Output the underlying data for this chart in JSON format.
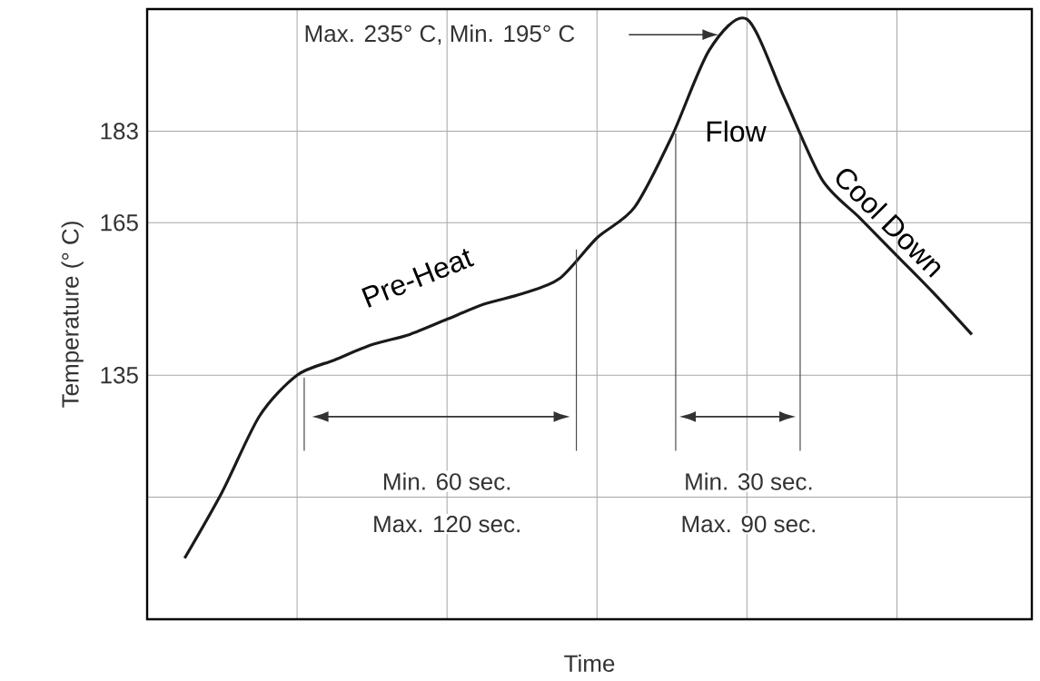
{
  "chart_data": {
    "type": "line",
    "xlabel": "Time",
    "ylabel": "Temperature (° C)",
    "categories": [
      null,
      null,
      null,
      null,
      null,
      null,
      null,
      null,
      null,
      null,
      null,
      null,
      null,
      null,
      null,
      null,
      null,
      null,
      null,
      null,
      null,
      null,
      null,
      null
    ],
    "values": [
      null,
      99,
      112,
      127,
      135,
      138,
      141,
      143,
      146,
      149,
      151,
      154,
      162,
      168,
      182,
      199,
      205,
      189.5,
      173.5,
      166,
      158.5,
      151,
      143,
      null
    ],
    "color": "#1a1a1a",
    "ylim": [
      87,
      207
    ],
    "yticks": [
      {
        "value": 111,
        "label": null
      },
      135,
      165,
      183
    ],
    "grid": true,
    "annotations": [
      "Max. 235° C, Min. 195° C",
      "Pre-Heat",
      "Flow",
      "Cool Down",
      "Min. 60 sec.",
      "Max. 120 sec.",
      "Min. 30 sec.",
      "Max. 90 sec."
    ]
  }
}
